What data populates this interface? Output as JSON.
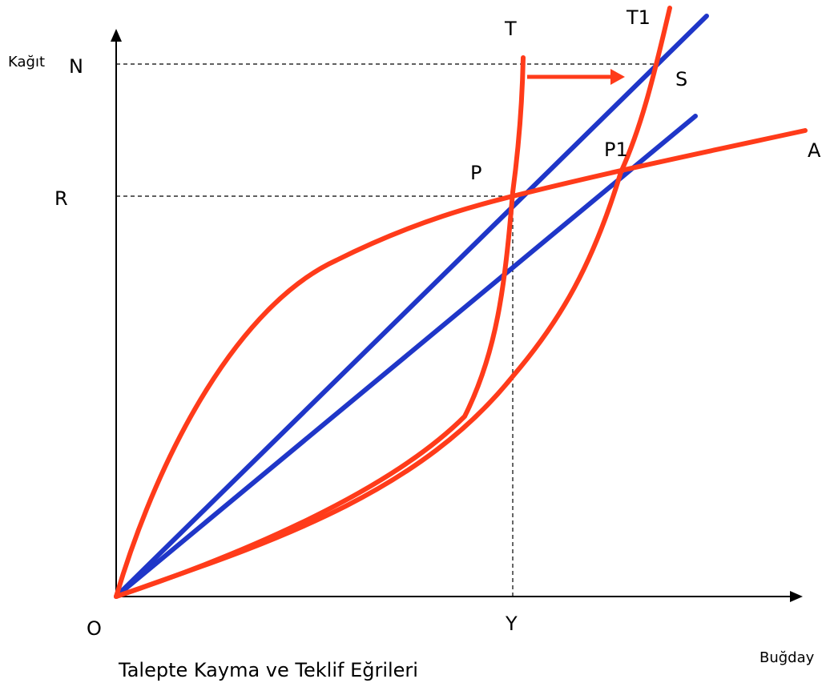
{
  "caption": "Talepte Kayma ve Teklif Eğrileri",
  "axes": {
    "y_title": "Kağıt",
    "x_title": "Buğday"
  },
  "labels": {
    "origin": "O",
    "n": "N",
    "r": "R",
    "y": "Y",
    "t": "T",
    "t1": "T1",
    "s": "S",
    "p": "P",
    "p1": "P1",
    "a": "A"
  },
  "colors": {
    "offer_curves": "#ff3b1a",
    "price_lines": "#1f36c8",
    "axes": "#000000"
  }
}
